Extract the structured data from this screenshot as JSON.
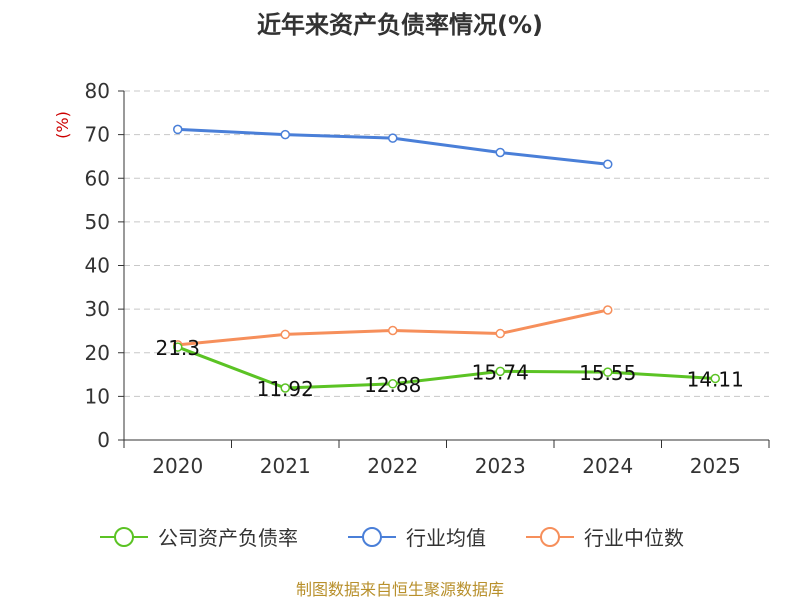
{
  "chart_data": {
    "type": "line",
    "title": "近年来资产负债率情况(%)",
    "ylabel": "(%)",
    "xlabel": "",
    "categories": [
      "2020",
      "2021",
      "2022",
      "2023",
      "2024",
      "2025"
    ],
    "ylim": [
      0,
      80
    ],
    "yticks": [
      0,
      10,
      20,
      30,
      40,
      50,
      60,
      70,
      80
    ],
    "grid": true,
    "legend_position": "bottom",
    "series": [
      {
        "name": "公司资产负债率",
        "color": "#5bc324",
        "values": [
          21.3,
          11.92,
          12.88,
          15.74,
          15.55,
          14.11
        ],
        "labels": [
          "21.3",
          "11.92",
          "12.88",
          "15.74",
          "15.55",
          "14.11"
        ]
      },
      {
        "name": "行业均值",
        "color": "#4a7fd8",
        "values": [
          71.2,
          70.0,
          69.2,
          65.9,
          63.2,
          null
        ],
        "labels": []
      },
      {
        "name": "行业中位数",
        "color": "#f68f5b",
        "values": [
          21.8,
          24.2,
          25.1,
          24.4,
          29.8,
          null
        ],
        "labels": []
      }
    ]
  },
  "source": "制图数据来自恒生聚源数据库"
}
